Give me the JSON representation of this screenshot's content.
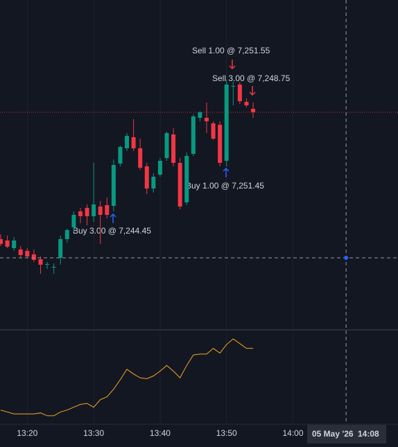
{
  "chart_data": {
    "type": "candlestick",
    "categories": [
      null,
      null,
      null,
      null,
      null,
      null,
      null,
      null,
      null,
      null,
      null,
      null,
      null,
      null,
      null,
      null,
      null,
      null,
      null,
      null,
      null,
      null,
      null,
      null,
      null,
      null,
      null,
      null,
      null,
      null,
      null,
      null,
      null,
      null,
      null,
      null,
      null,
      null,
      null
    ],
    "open": [
      7239.95,
      7239.75,
      7238.65,
      7238.45,
      7238.25,
      7237.75,
      7237.05,
      7236.25,
      7235.95,
      7237.25,
      7239.95,
      7241.65,
      7243.95,
      7244.45,
      7243.25,
      7244.65,
      7244.85,
      7244.75,
      7250.85,
      7253.05,
      7254.65,
      7253.05,
      7250.45,
      7247.25,
      7249.25,
      7251.65,
      7255.05,
      7250.95,
      7245.25,
      7252.25,
      7257.45,
      7257.45,
      7256.65,
      7256.45,
      7251.25,
      7262.05,
      7262.25,
      7259.75,
      7258.75
    ],
    "high": [
      7240.65,
      7240.45,
      7240.25,
      7238.95,
      7238.65,
      7238.45,
      7237.45,
      7236.65,
      7236.45,
      7240.45,
      7241.45,
      7243.95,
      7244.45,
      7244.95,
      7250.95,
      7245.45,
      7245.95,
      7251.45,
      7253.45,
      7255.25,
      7257.25,
      7254.45,
      7250.95,
      7249.45,
      7251.65,
      7255.45,
      7255.95,
      7251.65,
      7252.45,
      7257.95,
      7258.45,
      7259.65,
      7256.95,
      7256.95,
      7262.95,
      7262.65,
      7262.65,
      7260.25,
      7259.65
    ],
    "low": [
      7238.95,
      7238.65,
      7238.25,
      7237.25,
      7237.25,
      7236.65,
      7234.95,
      7235.65,
      7234.95,
      7236.25,
      7239.45,
      7240.95,
      7242.25,
      7241.95,
      7242.45,
      7239.25,
      7242.95,
      7243.95,
      7250.45,
      7252.65,
      7252.65,
      7249.95,
      7246.45,
      7246.65,
      7248.95,
      7251.25,
      7250.45,
      7244.25,
      7244.85,
      7251.95,
      7256.95,
      7255.25,
      7254.25,
      7250.45,
      7250.45,
      7259.25,
      7259.45,
      7258.95,
      7257.45
    ],
    "close": [
      7239.25,
      7238.85,
      7239.75,
      7237.65,
      7237.45,
      7236.95,
      7236.25,
      7236.35,
      7235.95,
      7239.95,
      7241.25,
      7243.45,
      7243.25,
      7243.25,
      7244.95,
      7243.45,
      7243.45,
      7250.65,
      7253.25,
      7254.85,
      7253.05,
      7250.25,
      7247.25,
      7248.95,
      7251.25,
      7255.25,
      7250.95,
      7244.65,
      7251.95,
      7257.65,
      7258.25,
      7256.95,
      7254.45,
      7250.95,
      7262.25,
      7262.05,
      7259.85,
      7259.25,
      7258.25
    ],
    "up_color": "#089981",
    "down_color": "#f23645",
    "ylim": [
      7226.95,
      7274.45
    ],
    "xticks": [
      {
        "value": 4,
        "label": "13:20"
      },
      {
        "value": 14,
        "label": "13:30"
      },
      {
        "value": 24,
        "label": "13:40"
      },
      {
        "value": 34,
        "label": "13:50"
      },
      {
        "value": 44,
        "label": "14:00"
      }
    ],
    "last_price": 7258.25,
    "crosshair": {
      "x": {
        "value": 52,
        "date": "05 May '26",
        "time": "14:08"
      },
      "y": 7237.25
    },
    "annotations": [
      "Sell 1.00 @ 7,251.55",
      "Sell 3.00 @ 7,248.75",
      "Buy 1.00 @ 7,251.45",
      "Buy 3.00 @ 7,244.45"
    ],
    "indicator": {
      "color": "#f5a623",
      "ylim": [
        0,
        100
      ],
      "values": [
        17,
        15,
        13,
        13,
        13,
        13,
        14,
        11,
        11,
        15,
        17,
        20,
        23,
        24,
        20,
        28,
        31,
        39,
        49,
        60,
        55,
        51,
        50,
        53,
        58,
        64,
        58,
        51,
        64,
        75,
        76,
        76,
        82,
        77,
        86,
        92,
        87,
        82,
        82
      ]
    }
  }
}
